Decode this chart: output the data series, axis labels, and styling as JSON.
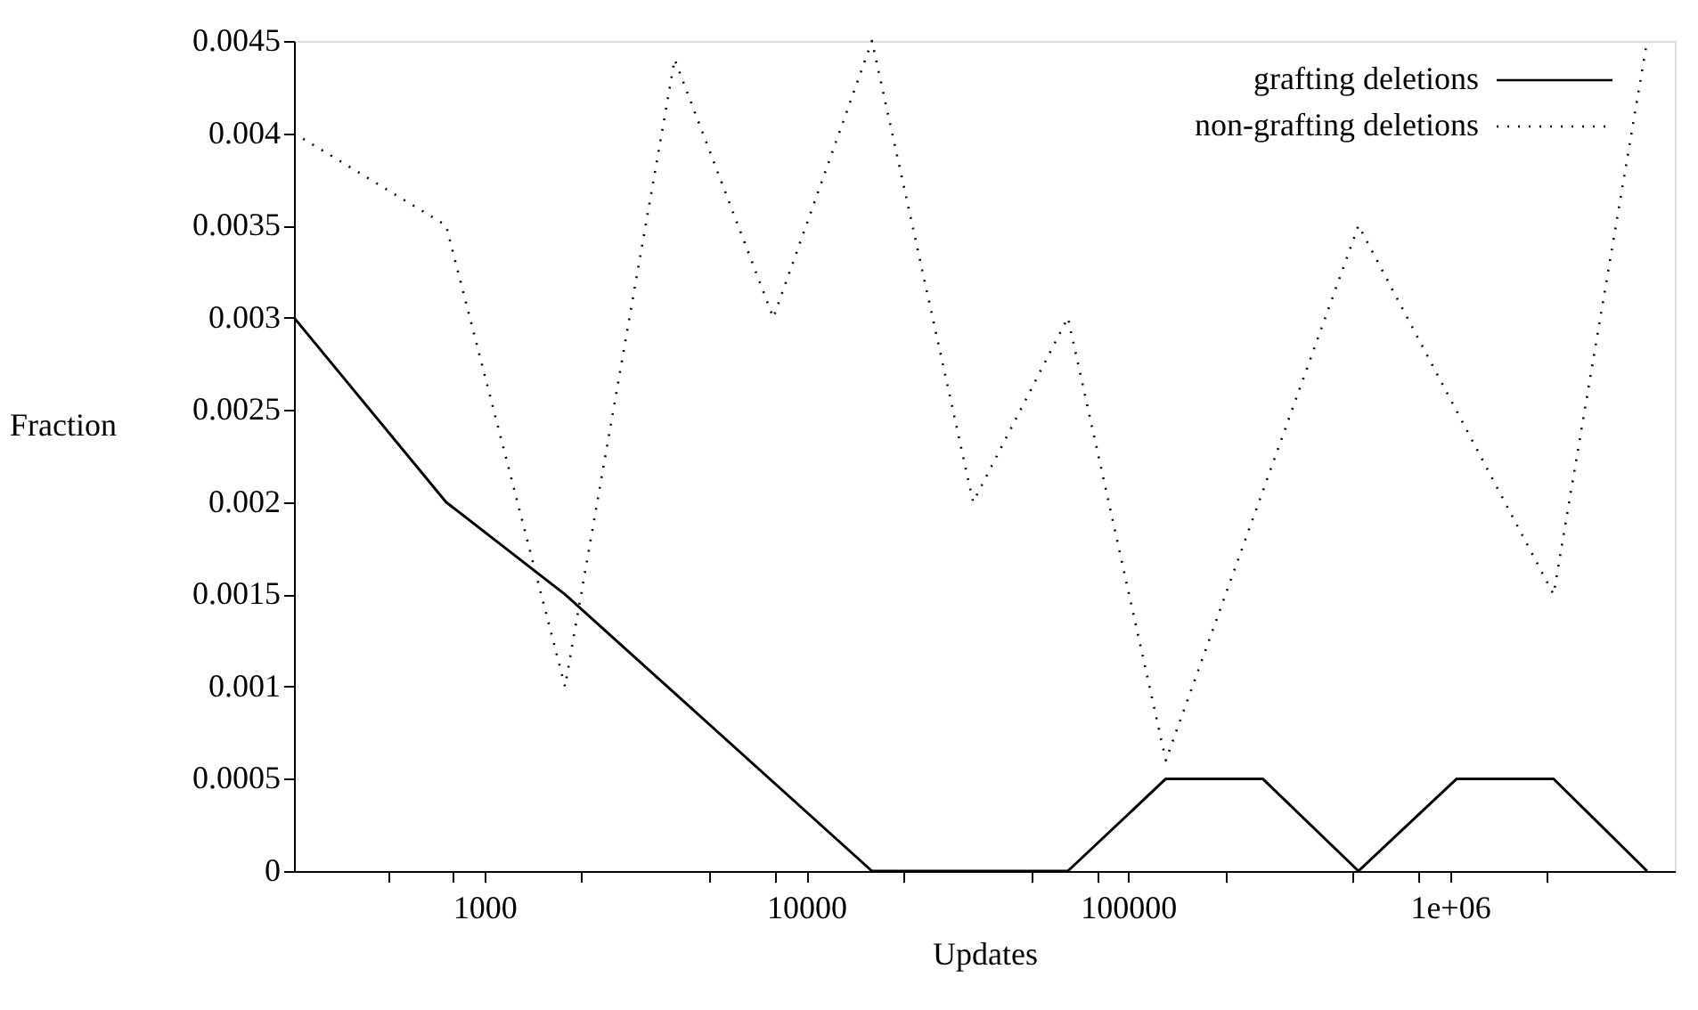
{
  "chart_data": {
    "type": "line",
    "xlabel": "Updates",
    "ylabel": "Fraction",
    "log": "x",
    "xlim": [
      256,
      5000000
    ],
    "ylim": [
      0,
      0.0045
    ],
    "xticks": [
      {
        "value": 500,
        "label": null
      },
      {
        "value": 800,
        "label": null
      },
      1000,
      {
        "value": 2000,
        "label": null
      },
      {
        "value": 5000,
        "label": null
      },
      {
        "value": 8000,
        "label": null
      },
      10000,
      {
        "value": 20000,
        "label": null
      },
      {
        "value": 50000,
        "label": null
      },
      {
        "value": 80000,
        "label": null
      },
      100000,
      {
        "value": 200000,
        "label": null
      },
      {
        "value": 500000,
        "label": null
      },
      {
        "value": 800000,
        "label": null
      },
      {
        "value": 1000000,
        "label": "1e+06"
      },
      {
        "value": 2000000,
        "label": null
      }
    ],
    "yticks": [
      0,
      0.0005,
      0.001,
      0.0015,
      0.002,
      0.0025,
      0.003,
      0.0035,
      0.004,
      0.0045
    ],
    "grid": false,
    "legend": "top right",
    "series": [
      {
        "name": "grafting deletions",
        "color": "#000000",
        "line_style": "solid",
        "x": [
          256,
          760,
          1780,
          16000,
          65000,
          131000,
          262000,
          520000,
          1050000,
          2100000,
          4100000
        ],
        "values": [
          0.003,
          0.002,
          0.0015,
          0,
          0,
          0.0005,
          0.0005,
          0,
          0.0005,
          0.0005,
          0
        ]
      },
      {
        "name": "non-grafting deletions",
        "color": "#000000",
        "line_style": "dotted",
        "x": [
          256,
          760,
          1780,
          3900,
          7900,
          16000,
          33000,
          65000,
          131000,
          520000,
          2100000,
          4100000
        ],
        "values": [
          0.004,
          0.0035,
          0.001,
          0.0044,
          0.003,
          0.0045,
          0.002,
          0.003,
          0.0006,
          0.0035,
          0.0015,
          0.0045
        ]
      }
    ]
  }
}
